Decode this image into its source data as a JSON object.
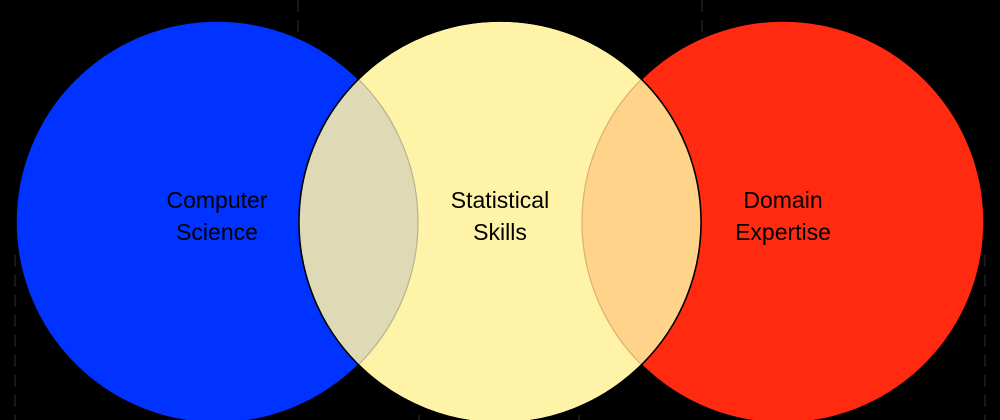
{
  "diagram": {
    "circles": [
      {
        "name": "computer-science",
        "lines": [
          "Computer",
          "Science"
        ],
        "color": "#0033FF"
      },
      {
        "name": "statistical-skills",
        "lines": [
          "Statistical",
          "Skills"
        ],
        "color": "#FFF3A8"
      },
      {
        "name": "domain-expertise",
        "lines": [
          "Domain",
          "Expertise"
        ],
        "color": "#FF2A10"
      }
    ],
    "overlap_colors": {
      "computer-science_statistical-skills": "#DEDAB5",
      "statistical-skills_domain-expertise": "#FFD38A"
    },
    "background": "#000000",
    "outline": "#000000"
  }
}
